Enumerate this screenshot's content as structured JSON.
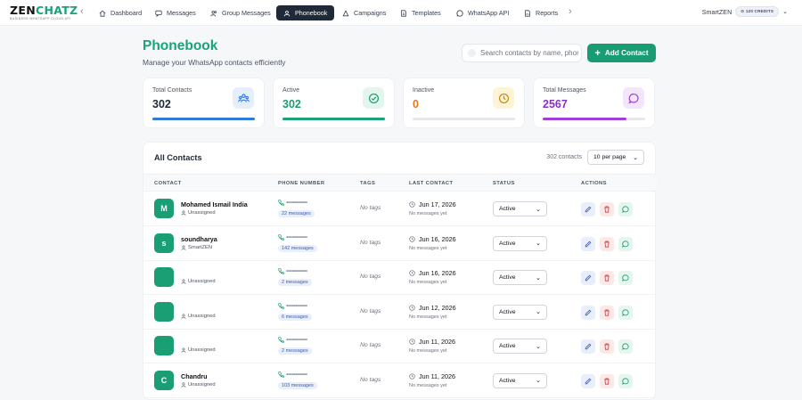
{
  "brand": {
    "name_part1": "ZEN",
    "name_part2": "CHATZ",
    "tagline": "BUSINESS WHATSAPP CLOUD API"
  },
  "nav": {
    "items": [
      {
        "label": "Dashboard",
        "icon": "home-icon"
      },
      {
        "label": "Messages",
        "icon": "chat-icon"
      },
      {
        "label": "Group Messages",
        "icon": "users-icon"
      },
      {
        "label": "Phonebook",
        "icon": "contacts-icon",
        "active": true
      },
      {
        "label": "Campaigns",
        "icon": "megaphone-icon"
      },
      {
        "label": "Templates",
        "icon": "document-icon"
      },
      {
        "label": "WhatsApp API",
        "icon": "whatsapp-icon"
      },
      {
        "label": "Reports",
        "icon": "report-icon"
      }
    ],
    "user": "SmartZEN",
    "credits": "120 CREDITS"
  },
  "header": {
    "title": "Phonebook",
    "subtitle": "Manage your WhatsApp contacts efficiently",
    "search_placeholder": "Search contacts by name, phone",
    "add_button": "Add Contact"
  },
  "stats": [
    {
      "label": "Total Contacts",
      "value": "302",
      "color": "#1f2937",
      "bar_color": "#2f7bd6",
      "bar_fraction": 1.0,
      "icon": "users-icon",
      "icon_bg": "#e5eefb",
      "icon_color": "#2f6fd1"
    },
    {
      "label": "Active",
      "value": "302",
      "color": "#1a9c73",
      "bar_color": "#1aa37a",
      "bar_fraction": 1.0,
      "icon": "check-circle-icon",
      "icon_bg": "#e3f5ec",
      "icon_color": "#1a9c73"
    },
    {
      "label": "Inactive",
      "value": "0",
      "color": "#e07a1f",
      "bar_color": "#e5e7eb",
      "bar_fraction": 0.0,
      "icon": "clock-icon",
      "icon_bg": "#fdf4d6",
      "icon_color": "#c68a13"
    },
    {
      "label": "Total Messages",
      "value": "2567",
      "color": "#8b2fc9",
      "bar_color": "#a23fd6",
      "bar_fraction": 0.82,
      "icon": "message-icon",
      "icon_bg": "#f3e6fb",
      "icon_color": "#a23fd6"
    }
  ],
  "table": {
    "title": "All Contacts",
    "count": "302 contacts",
    "per_page": "10 per page",
    "columns": [
      "CONTACT",
      "PHONE NUMBER",
      "TAGS",
      "LAST CONTACT",
      "STATUS",
      "ACTIONS"
    ],
    "rows": [
      {
        "initial": "M",
        "name": "Mohamed Ismail India",
        "group": "Unassigned",
        "phone": "••••••••••••",
        "messages": "22 messages",
        "tags": "No tags",
        "last_date": "Jun 17, 2026",
        "last_sub": "No messages yet",
        "status": "Active"
      },
      {
        "initial": "s",
        "name": "soundharya",
        "group": "SmartZEN",
        "phone": "••••••••••••",
        "messages": "142 messages",
        "tags": "No tags",
        "last_date": "Jun 16, 2026",
        "last_sub": "No messages yet",
        "status": "Active"
      },
      {
        "initial": "",
        "name": "",
        "group": "Unassigned",
        "phone": "••••••••••••",
        "messages": "2 messages",
        "tags": "No tags",
        "last_date": "Jun 16, 2026",
        "last_sub": "No messages yet",
        "status": "Active"
      },
      {
        "initial": "",
        "name": "",
        "group": "Unassigned",
        "phone": "••••••••••••",
        "messages": "6 messages",
        "tags": "No tags",
        "last_date": "Jun 12, 2026",
        "last_sub": "No messages yet",
        "status": "Active"
      },
      {
        "initial": "",
        "name": "",
        "group": "Unassigned",
        "phone": "••••••••••••",
        "messages": "2 messages",
        "tags": "No tags",
        "last_date": "Jun 11, 2026",
        "last_sub": "No messages yet",
        "status": "Active"
      },
      {
        "initial": "C",
        "name": "Chandru",
        "group": "Unassigned",
        "phone": "••••••••••••",
        "messages": "103 messages",
        "tags": "No tags",
        "last_date": "Jun 11, 2026",
        "last_sub": "No messages yet",
        "status": "Active"
      }
    ]
  }
}
